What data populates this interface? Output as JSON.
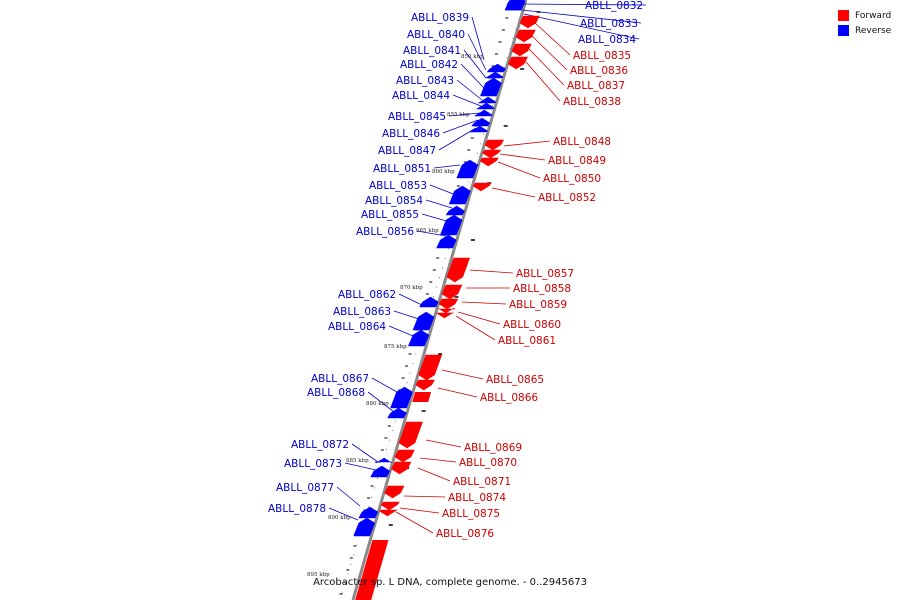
{
  "colors": {
    "forward": "#ff0000",
    "reverse": "#0000ff",
    "backbone": "#8a8a8a"
  },
  "legend": [
    {
      "label": "Forward",
      "color": "#ff0000"
    },
    {
      "label": "Reverse",
      "color": "#0000ff"
    }
  ],
  "caption": "Arcobacter sp. L DNA, complete genome. - 0..2945673",
  "ticks": [
    "850 kbp",
    "855 kbp",
    "860 kbp",
    "865 kbp",
    "870 kbp",
    "875 kbp",
    "880 kbp",
    "885 kbp",
    "890 kbp",
    "895 kbp"
  ],
  "genes": [
    {
      "label": "ABLL_0832",
      "strand": "reverse"
    },
    {
      "label": "ABLL_0833",
      "strand": "reverse"
    },
    {
      "label": "ABLL_0834",
      "strand": "reverse"
    },
    {
      "label": "ABLL_0835",
      "strand": "forward"
    },
    {
      "label": "ABLL_0836",
      "strand": "forward"
    },
    {
      "label": "ABLL_0837",
      "strand": "forward"
    },
    {
      "label": "ABLL_0838",
      "strand": "forward"
    },
    {
      "label": "ABLL_0839",
      "strand": "reverse"
    },
    {
      "label": "ABLL_0840",
      "strand": "reverse"
    },
    {
      "label": "ABLL_0841",
      "strand": "reverse"
    },
    {
      "label": "ABLL_0842",
      "strand": "reverse"
    },
    {
      "label": "ABLL_0843",
      "strand": "reverse"
    },
    {
      "label": "ABLL_0844",
      "strand": "reverse"
    },
    {
      "label": "ABLL_0845",
      "strand": "reverse"
    },
    {
      "label": "ABLL_0846",
      "strand": "reverse"
    },
    {
      "label": "ABLL_0847",
      "strand": "reverse"
    },
    {
      "label": "ABLL_0848",
      "strand": "forward"
    },
    {
      "label": "ABLL_0849",
      "strand": "forward"
    },
    {
      "label": "ABLL_0850",
      "strand": "forward"
    },
    {
      "label": "ABLL_0851",
      "strand": "reverse"
    },
    {
      "label": "ABLL_0852",
      "strand": "forward"
    },
    {
      "label": "ABLL_0853",
      "strand": "reverse"
    },
    {
      "label": "ABLL_0854",
      "strand": "reverse"
    },
    {
      "label": "ABLL_0855",
      "strand": "reverse"
    },
    {
      "label": "ABLL_0856",
      "strand": "reverse"
    },
    {
      "label": "ABLL_0857",
      "strand": "forward"
    },
    {
      "label": "ABLL_0858",
      "strand": "forward"
    },
    {
      "label": "ABLL_0859",
      "strand": "forward"
    },
    {
      "label": "ABLL_0860",
      "strand": "forward"
    },
    {
      "label": "ABLL_0861",
      "strand": "forward"
    },
    {
      "label": "ABLL_0862",
      "strand": "reverse"
    },
    {
      "label": "ABLL_0863",
      "strand": "reverse"
    },
    {
      "label": "ABLL_0864",
      "strand": "reverse"
    },
    {
      "label": "ABLL_0865",
      "strand": "forward"
    },
    {
      "label": "ABLL_0866",
      "strand": "forward"
    },
    {
      "label": "ABLL_0867",
      "strand": "reverse"
    },
    {
      "label": "ABLL_0868",
      "strand": "reverse"
    },
    {
      "label": "ABLL_0869",
      "strand": "forward"
    },
    {
      "label": "ABLL_0870",
      "strand": "forward"
    },
    {
      "label": "ABLL_0871",
      "strand": "forward"
    },
    {
      "label": "ABLL_0872",
      "strand": "reverse"
    },
    {
      "label": "ABLL_0873",
      "strand": "reverse"
    },
    {
      "label": "ABLL_0874",
      "strand": "forward"
    },
    {
      "label": "ABLL_0875",
      "strand": "forward"
    },
    {
      "label": "ABLL_0876",
      "strand": "forward"
    },
    {
      "label": "ABLL_0877",
      "strand": "reverse"
    },
    {
      "label": "ABLL_0878",
      "strand": "reverse"
    }
  ]
}
